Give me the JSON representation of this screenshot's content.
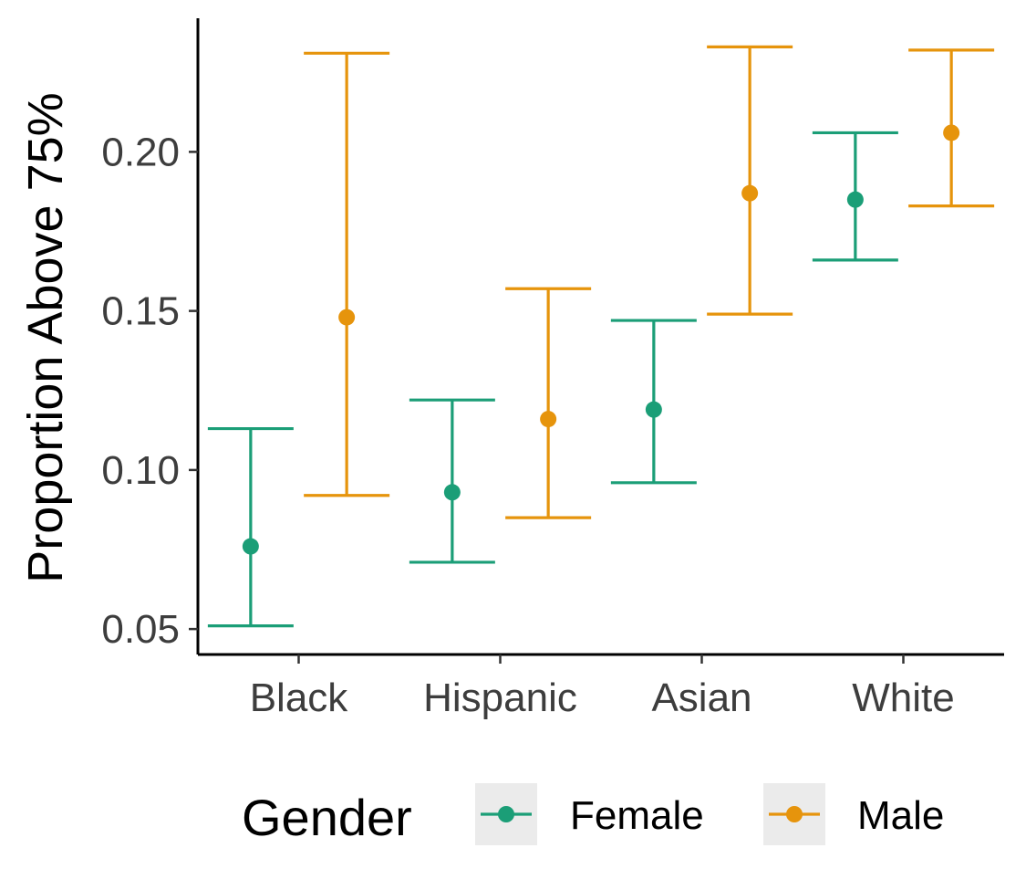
{
  "chart_data": {
    "type": "errorbar",
    "title": "",
    "xlabel": "",
    "ylabel": "Proportion Above 75%",
    "ylim": [
      0.042,
      0.242
    ],
    "yticks": [
      0.05,
      0.1,
      0.15,
      0.2
    ],
    "ytick_labels": [
      "0.05",
      "0.10",
      "0.15",
      "0.20"
    ],
    "categories": [
      "Black",
      "Hispanic",
      "Asian",
      "White"
    ],
    "grid": false,
    "legend": {
      "title": "Gender",
      "position": "bottom"
    },
    "series": [
      {
        "name": "Female",
        "color": "#1b9e77",
        "values": [
          0.076,
          0.093,
          0.119,
          0.185
        ],
        "lower": [
          0.051,
          0.071,
          0.096,
          0.166
        ],
        "upper": [
          0.113,
          0.122,
          0.147,
          0.206
        ]
      },
      {
        "name": "Male",
        "color": "#e6940c",
        "values": [
          0.148,
          0.116,
          0.187,
          0.206
        ],
        "lower": [
          0.092,
          0.085,
          0.149,
          0.183
        ],
        "upper": [
          0.231,
          0.157,
          0.233,
          0.232
        ]
      }
    ]
  }
}
